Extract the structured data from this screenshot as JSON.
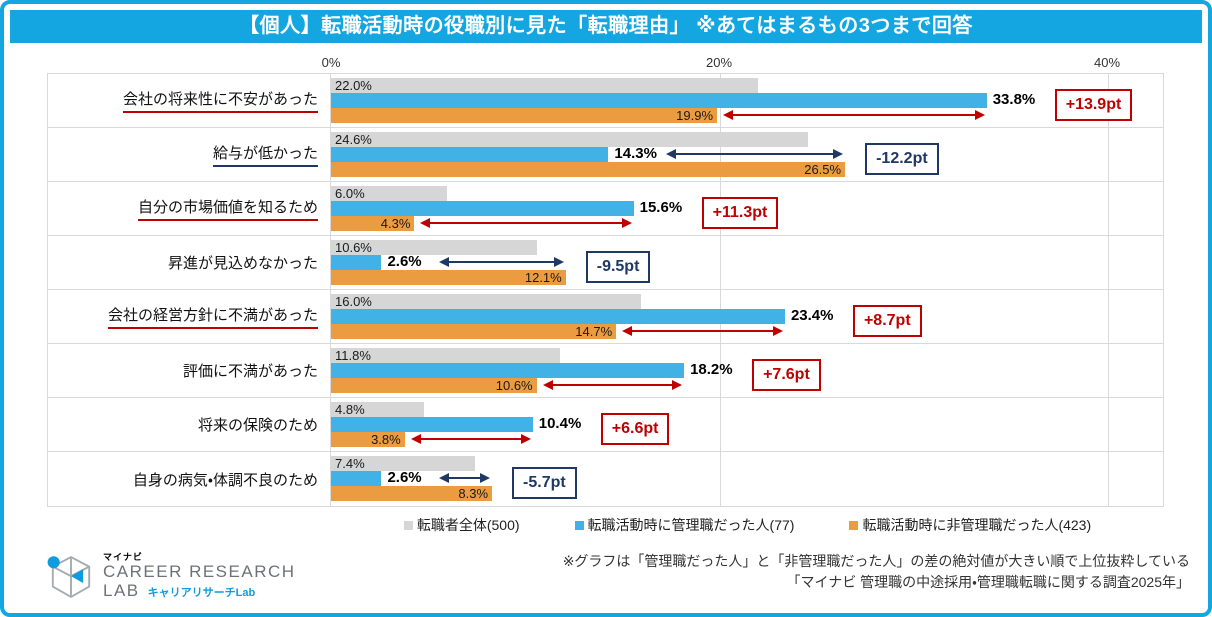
{
  "title": "【個人】転職活動時の役職別に見た「転職理由」 ※あてはまるもの3つまで回答",
  "colors": {
    "accent": "#14a6e0",
    "bar_overall": "#d6d6d6",
    "bar_manager": "#41b1e6",
    "bar_non_manager": "#eb9c41",
    "diff_positive": "#c00000",
    "diff_negative": "#1f3864",
    "grid": "#d9d9d9"
  },
  "chart_data": {
    "type": "bar",
    "orientation": "horizontal",
    "xlim": [
      0,
      42.8
    ],
    "grid": true,
    "axis_ticks": [
      {
        "label": "0%",
        "pct": 0
      },
      {
        "label": "20%",
        "pct": 20
      },
      {
        "label": "40%",
        "pct": 40
      }
    ],
    "series": [
      {
        "name": "転職者全体(500)",
        "key": "overall",
        "color": "#d6d6d6"
      },
      {
        "name": "転職活動時に管理職だった人(77)",
        "key": "manager",
        "color": "#41b1e6"
      },
      {
        "name": "転職活動時に非管理職だった人(423)",
        "key": "non_manager",
        "color": "#eb9c41"
      }
    ],
    "rows": [
      {
        "category": "会社の将来性に不安があった",
        "underline": "red",
        "overall": 22.0,
        "manager": 33.8,
        "non_manager": 19.9,
        "labels": {
          "overall": "22.0%",
          "manager": "33.8%",
          "non_manager": "19.9%"
        },
        "diff": {
          "label": "+13.9pt",
          "type": "positive"
        }
      },
      {
        "category": "給与が低かった",
        "underline": "navy",
        "overall": 24.6,
        "manager": 14.3,
        "non_manager": 26.5,
        "labels": {
          "overall": "24.6%",
          "manager": "14.3%",
          "non_manager": "26.5%"
        },
        "diff": {
          "label": "-12.2pt",
          "type": "negative"
        }
      },
      {
        "category": "自分の市場価値を知るため",
        "underline": "red",
        "overall": 6.0,
        "manager": 15.6,
        "non_manager": 4.3,
        "labels": {
          "overall": "6.0%",
          "manager": "15.6%",
          "non_manager": "4.3%"
        },
        "diff": {
          "label": "+11.3pt",
          "type": "positive"
        }
      },
      {
        "category": "昇進が見込めなかった",
        "underline": null,
        "overall": 10.6,
        "manager": 2.6,
        "non_manager": 12.1,
        "labels": {
          "overall": "10.6%",
          "manager": "2.6%",
          "non_manager": "12.1%"
        },
        "diff": {
          "label": "-9.5pt",
          "type": "negative"
        }
      },
      {
        "category": "会社の経営方針に不満があった",
        "underline": "red",
        "overall": 16.0,
        "manager": 23.4,
        "non_manager": 14.7,
        "labels": {
          "overall": "16.0%",
          "manager": "23.4%",
          "non_manager": "14.7%"
        },
        "diff": {
          "label": "+8.7pt",
          "type": "positive"
        }
      },
      {
        "category": "評価に不満があった",
        "underline": null,
        "overall": 11.8,
        "manager": 18.2,
        "non_manager": 10.6,
        "labels": {
          "overall": "11.8%",
          "manager": "18.2%",
          "non_manager": "10.6%"
        },
        "diff": {
          "label": "+7.6pt",
          "type": "positive"
        }
      },
      {
        "category": "将来の保険のため",
        "underline": null,
        "overall": 4.8,
        "manager": 10.4,
        "non_manager": 3.8,
        "labels": {
          "overall": "4.8%",
          "manager": "10.4%",
          "non_manager": "3.8%"
        },
        "diff": {
          "label": "+6.6pt",
          "type": "positive"
        }
      },
      {
        "category": "自身の病気・体調不良のため",
        "underline": null,
        "overall": 7.4,
        "manager": 2.6,
        "non_manager": 8.3,
        "labels": {
          "overall": "7.4%",
          "manager": "2.6%",
          "non_manager": "8.3%"
        },
        "diff": {
          "label": "-5.7pt",
          "type": "negative"
        }
      }
    ],
    "legend_position": "bottom"
  },
  "legend": [
    {
      "label": "転職者全体(500)",
      "color": "#d6d6d6"
    },
    {
      "label": "転職活動時に管理職だった人(77)",
      "color": "#41b1e6"
    },
    {
      "label": "転職活動時に非管理職だった人(423)",
      "color": "#eb9c41"
    }
  ],
  "footer": {
    "logo": {
      "brand_small": "マイナビ",
      "line1": "CAREER RESEARCH",
      "line2": "LAB",
      "line2_sub": "キャリアリサーチLab"
    },
    "note1": "※グラフは「管理職だった人」と「非管理職だった人」の差の絶対値が大きい順で上位抜粋している",
    "note2": "「マイナビ 管理職の中途採用・管理職転職に関する調査2025年」"
  }
}
